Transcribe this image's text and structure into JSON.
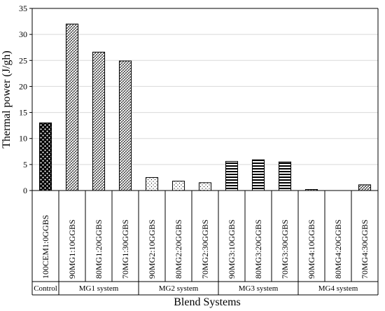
{
  "chart_data": {
    "type": "bar",
    "ylabel": "Thermal power (J/gh)",
    "xlabel": "Blend Systems",
    "ylim": [
      0,
      35
    ],
    "yticks": [
      0,
      5,
      10,
      15,
      20,
      25,
      30,
      35
    ],
    "grid": "horizontal",
    "categories": [
      "100CEM1:0GGBS",
      "90MG1:10GGBS",
      "80MG1:20GGBS",
      "70MG1:30GGBS",
      "90MG2:10GGBS",
      "80MG2:20GGBS",
      "70MG2:30GGBS",
      "90MG3:10GGBS",
      "80MG3:20GGBS",
      "70MG3:30GGBS",
      "90MG4:10GGBS",
      "80MG4:20GGBS",
      "70MG4:30GGBS"
    ],
    "values": [
      13.0,
      32.0,
      26.6,
      24.9,
      2.5,
      1.8,
      1.5,
      5.6,
      5.9,
      5.5,
      0.2,
      0.0,
      1.1
    ],
    "bar_patterns": [
      "checker",
      "diag",
      "diag",
      "diag",
      "dots",
      "dots",
      "dots",
      "hstripe",
      "hstripe",
      "hstripe",
      "diag",
      "diag",
      "diag"
    ],
    "groups": [
      {
        "label": "Control",
        "count": 1
      },
      {
        "label": "MG1 system",
        "count": 3
      },
      {
        "label": "MG2 system",
        "count": 3
      },
      {
        "label": "MG3 system",
        "count": 3
      },
      {
        "label": "MG4 system",
        "count": 3
      }
    ],
    "colors": {
      "bar_stroke": "#000000",
      "grid": "#d9d9d9",
      "axis": "#000000"
    }
  }
}
